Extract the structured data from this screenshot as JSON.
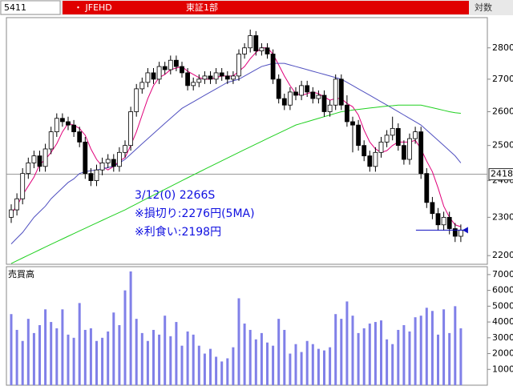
{
  "header": {
    "code": "5411",
    "name": "・ JFEHD",
    "market": "東証1部",
    "scale_label": "対数"
  },
  "chart_data": [
    {
      "type": "candlestick",
      "log_scale": true,
      "ylim": [
        2178,
        2900
      ],
      "yticks": [
        2200,
        2300,
        2400,
        2500,
        2600,
        2700,
        2800
      ],
      "up_color": "#ffffff",
      "down_color": "#000000",
      "open": [
        2300,
        2320,
        2350,
        2420,
        2450,
        2470,
        2440,
        2490,
        2540,
        2580,
        2570,
        2560,
        2540,
        2510,
        2420,
        2400,
        2430,
        2450,
        2460,
        2440,
        2480,
        2500,
        2600,
        2670,
        2690,
        2720,
        2700,
        2740,
        2730,
        2760,
        2740,
        2720,
        2680,
        2690,
        2700,
        2710,
        2700,
        2720,
        2710,
        2700,
        2710,
        2780,
        2800,
        2840,
        2790,
        2800,
        2780,
        2700,
        2640,
        2620,
        2660,
        2650,
        2680,
        2660,
        2640,
        2650,
        2600,
        2620,
        2700,
        2620,
        2570,
        2560,
        2500,
        2470,
        2440,
        2480,
        2510,
        2530,
        2550,
        2500,
        2460,
        2520,
        2540,
        2420,
        2340,
        2310,
        2280,
        2300,
        2270,
        2250
      ],
      "high": [
        2335,
        2365,
        2435,
        2465,
        2485,
        2485,
        2505,
        2555,
        2595,
        2595,
        2585,
        2575,
        2555,
        2525,
        2435,
        2445,
        2465,
        2475,
        2475,
        2495,
        2515,
        2615,
        2685,
        2705,
        2735,
        2735,
        2755,
        2755,
        2775,
        2775,
        2755,
        2735,
        2705,
        2715,
        2725,
        2725,
        2735,
        2735,
        2725,
        2725,
        2795,
        2815,
        2860,
        2855,
        2815,
        2815,
        2795,
        2715,
        2655,
        2675,
        2675,
        2695,
        2695,
        2675,
        2665,
        2665,
        2635,
        2715,
        2715,
        2650,
        2585,
        2575,
        2515,
        2485,
        2495,
        2525,
        2545,
        2585,
        2565,
        2515,
        2535,
        2555,
        2555,
        2435,
        2355,
        2325,
        2315,
        2315,
        2285,
        2281
      ],
      "low": [
        2285,
        2305,
        2335,
        2405,
        2435,
        2425,
        2425,
        2475,
        2525,
        2555,
        2545,
        2525,
        2495,
        2405,
        2385,
        2385,
        2415,
        2435,
        2425,
        2425,
        2465,
        2485,
        2585,
        2655,
        2675,
        2685,
        2685,
        2715,
        2715,
        2725,
        2705,
        2665,
        2665,
        2675,
        2685,
        2685,
        2685,
        2695,
        2685,
        2685,
        2695,
        2765,
        2785,
        2775,
        2775,
        2765,
        2685,
        2625,
        2605,
        2605,
        2635,
        2635,
        2645,
        2625,
        2625,
        2585,
        2585,
        2605,
        2605,
        2555,
        2480,
        2485,
        2455,
        2425,
        2425,
        2465,
        2495,
        2515,
        2485,
        2445,
        2445,
        2505,
        2405,
        2325,
        2295,
        2265,
        2265,
        2255,
        2235,
        2235
      ],
      "close": [
        2320,
        2350,
        2420,
        2450,
        2470,
        2440,
        2490,
        2540,
        2580,
        2570,
        2560,
        2540,
        2510,
        2420,
        2400,
        2430,
        2450,
        2460,
        2440,
        2480,
        2500,
        2600,
        2670,
        2690,
        2720,
        2700,
        2740,
        2730,
        2760,
        2740,
        2720,
        2680,
        2690,
        2700,
        2710,
        2700,
        2720,
        2710,
        2700,
        2710,
        2780,
        2800,
        2840,
        2790,
        2800,
        2780,
        2700,
        2640,
        2620,
        2660,
        2650,
        2680,
        2660,
        2640,
        2650,
        2600,
        2620,
        2700,
        2620,
        2570,
        2560,
        2500,
        2470,
        2440,
        2480,
        2510,
        2530,
        2550,
        2500,
        2460,
        2520,
        2540,
        2420,
        2340,
        2310,
        2280,
        2300,
        2270,
        2250,
        2266
      ],
      "ma_lines": [
        {
          "color": "#e0007a",
          "values": [
            2310,
            2330,
            2360,
            2385,
            2410,
            2445,
            2460,
            2480,
            2505,
            2540,
            2565,
            2560,
            2550,
            2530,
            2490,
            2460,
            2440,
            2430,
            2440,
            2455,
            2465,
            2500,
            2540,
            2590,
            2640,
            2680,
            2705,
            2715,
            2730,
            2735,
            2740,
            2725,
            2715,
            2705,
            2700,
            2700,
            2705,
            2710,
            2710,
            2710,
            2725,
            2740,
            2765,
            2785,
            2800,
            2800,
            2780,
            2745,
            2710,
            2680,
            2655,
            2650,
            2655,
            2660,
            2655,
            2645,
            2635,
            2640,
            2640,
            2625,
            2615,
            2590,
            2545,
            2510,
            2490,
            2480,
            2485,
            2500,
            2510,
            2510,
            2510,
            2515,
            2490,
            2455,
            2425,
            2380,
            2330,
            2300,
            2280,
            2275
          ]
        },
        {
          "color": "#5050c0",
          "values": [
            2230,
            2245,
            2260,
            2280,
            2300,
            2315,
            2330,
            2350,
            2365,
            2380,
            2395,
            2405,
            2420,
            2425,
            2428,
            2430,
            2433,
            2437,
            2440,
            2450,
            2460,
            2475,
            2490,
            2505,
            2520,
            2535,
            2550,
            2565,
            2580,
            2595,
            2610,
            2620,
            2630,
            2640,
            2650,
            2660,
            2670,
            2680,
            2690,
            2695,
            2700,
            2710,
            2720,
            2730,
            2740,
            2745,
            2750,
            2750,
            2750,
            2745,
            2740,
            2735,
            2730,
            2725,
            2720,
            2715,
            2710,
            2705,
            2700,
            2690,
            2680,
            2670,
            2660,
            2650,
            2640,
            2630,
            2620,
            2610,
            2600,
            2590,
            2580,
            2570,
            2560,
            2545,
            2530,
            2515,
            2500,
            2485,
            2470,
            2450
          ]
        },
        {
          "color": "#20d020",
          "values": [
            2180,
            2187,
            2194,
            2201,
            2208,
            2215,
            2222,
            2229,
            2236,
            2243,
            2250,
            2257,
            2264,
            2271,
            2278,
            2285,
            2292,
            2299,
            2306,
            2313,
            2320,
            2328,
            2336,
            2344,
            2352,
            2360,
            2368,
            2376,
            2384,
            2392,
            2400,
            2408,
            2416,
            2424,
            2432,
            2440,
            2448,
            2456,
            2464,
            2472,
            2480,
            2488,
            2496,
            2504,
            2512,
            2520,
            2528,
            2536,
            2544,
            2552,
            2560,
            2565,
            2570,
            2575,
            2580,
            2585,
            2590,
            2595,
            2600,
            2602,
            2605,
            2607,
            2609,
            2611,
            2613,
            2615,
            2617,
            2618,
            2620,
            2620,
            2620,
            2620,
            2620,
            2616,
            2612,
            2608,
            2604,
            2600,
            2597,
            2595
          ]
        }
      ],
      "ref_line": {
        "value": 2418,
        "label": "2418.0"
      },
      "annotations": [
        "3/12(0) 2266S",
        "※損切り:2276円(5MA)",
        "※利食い:2198円"
      ]
    },
    {
      "type": "bar",
      "title": "売買高",
      "color": "#8080e8",
      "ylim": [
        0,
        7450
      ],
      "yticks": [
        1000,
        2000,
        3000,
        4000,
        5000,
        6000,
        7000
      ],
      "values": [
        4500,
        3500,
        2800,
        4200,
        3300,
        3800,
        4800,
        4000,
        3600,
        4800,
        3200,
        3000,
        5200,
        3500,
        3600,
        2800,
        3000,
        3400,
        4600,
        3800,
        6000,
        7200,
        4200,
        3300,
        2800,
        3500,
        3200,
        4400,
        3100,
        4000,
        2500,
        3400,
        3200,
        2500,
        2000,
        2300,
        1800,
        1500,
        1700,
        2400,
        5500,
        3900,
        3500,
        2900,
        3300,
        2700,
        2500,
        4200,
        3500,
        2000,
        2600,
        2100,
        2800,
        2600,
        2300,
        2200,
        2400,
        4500,
        4200,
        5300,
        4400,
        3300,
        3600,
        3900,
        4000,
        4100,
        2900,
        2600,
        3500,
        3800,
        3400,
        4300,
        4400,
        4900,
        4700,
        3200,
        4800,
        3300,
        5000,
        3600
      ]
    }
  ]
}
